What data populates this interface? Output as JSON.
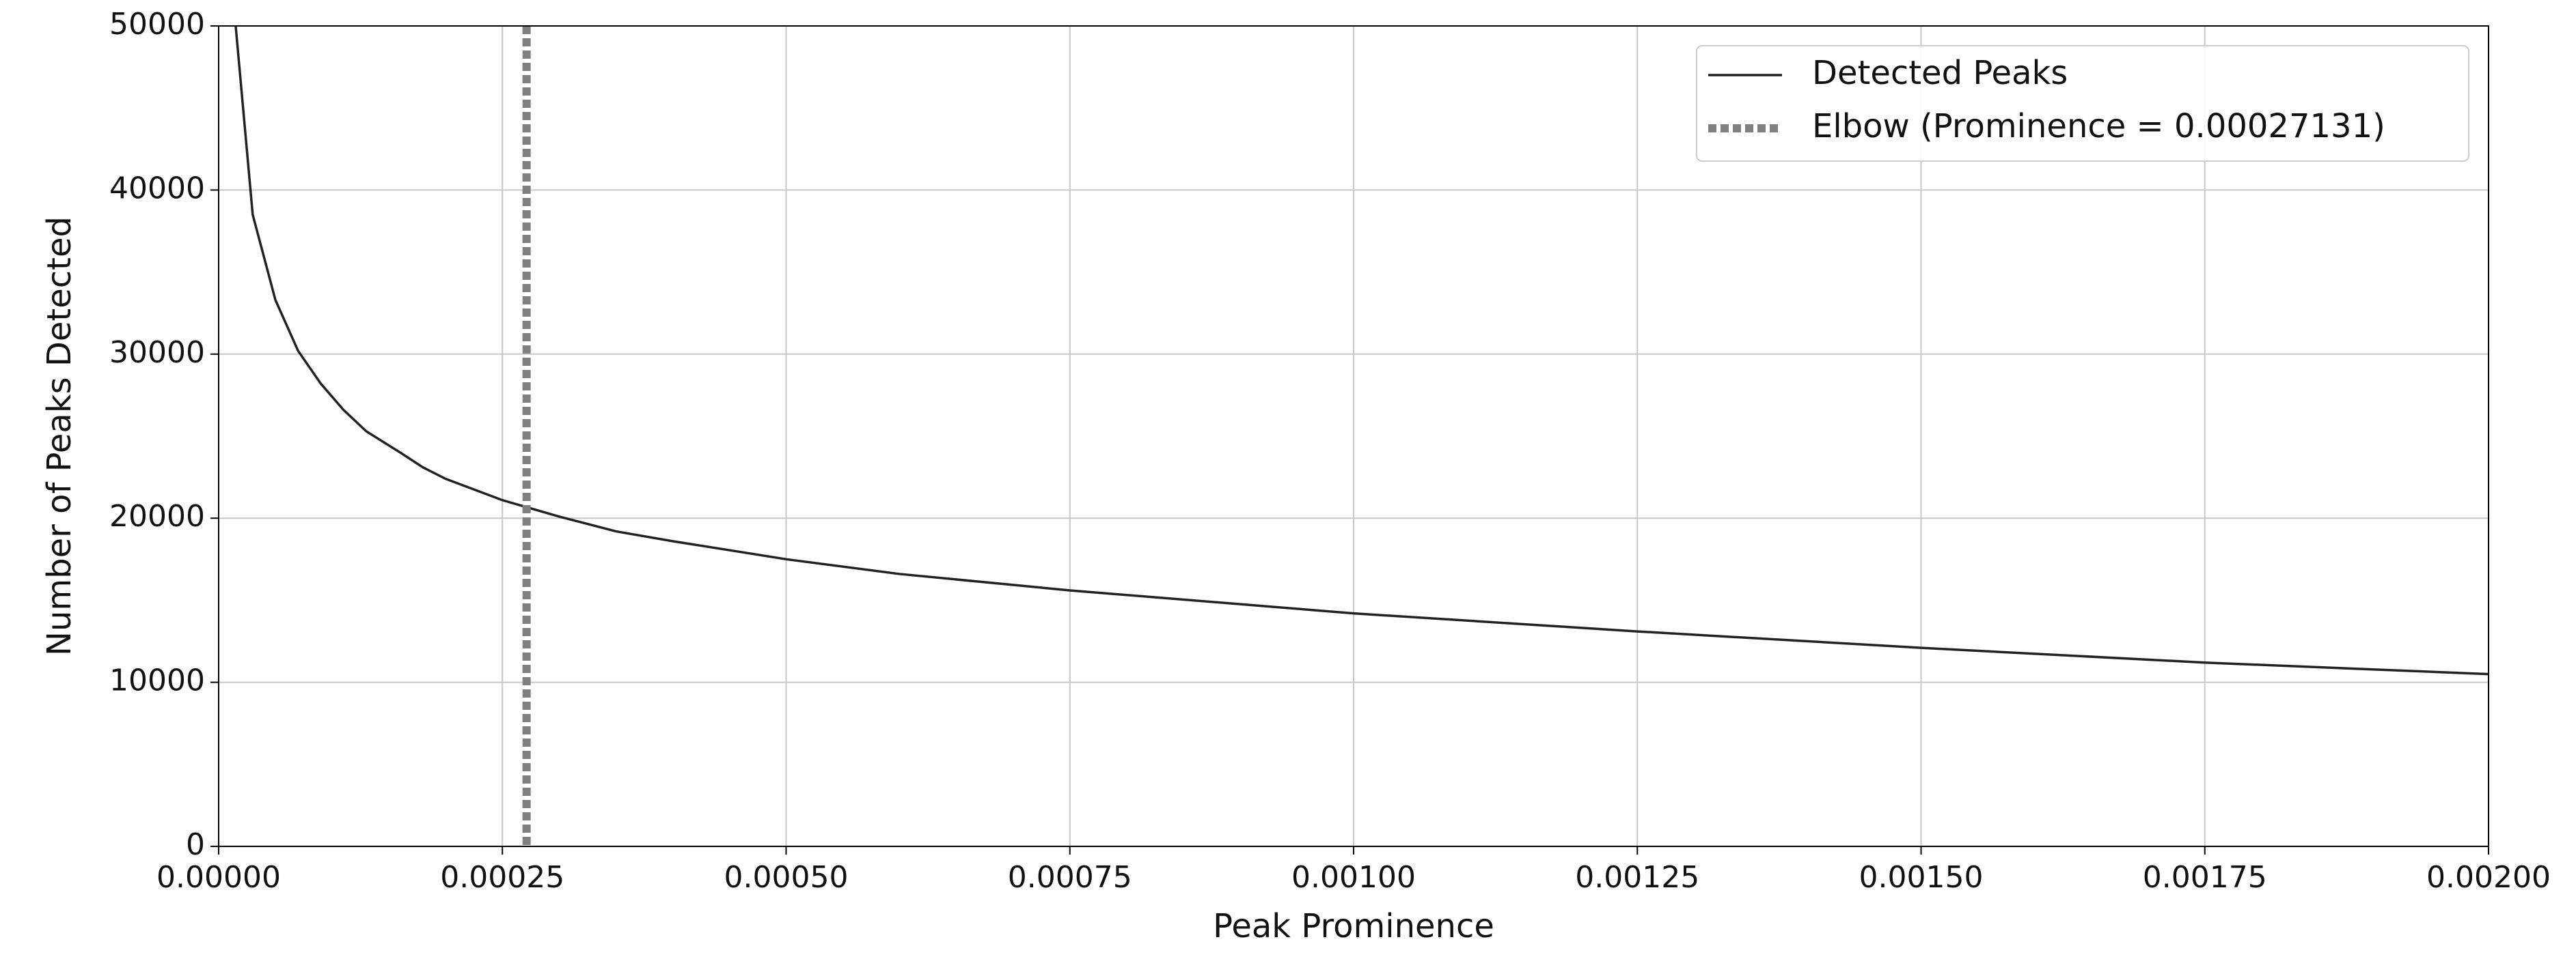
{
  "chart_data": {
    "type": "line",
    "xlabel": "Peak Prominence",
    "ylabel": "Number of Peaks Detected",
    "x": [
      1.5e-05,
      3e-05,
      5e-05,
      7e-05,
      9e-05,
      0.00011,
      0.00013,
      0.00016,
      0.00018,
      0.0002,
      0.00025,
      0.0003,
      0.00035,
      0.0004,
      0.0005,
      0.0006,
      0.00075,
      0.001,
      0.00125,
      0.0015,
      0.00175,
      0.002
    ],
    "series": [
      {
        "name": "Detected Peaks",
        "color": "#222222",
        "values": [
          50000,
          38500,
          33300,
          30200,
          28200,
          26600,
          25300,
          24000,
          23100,
          22400,
          21100,
          20100,
          19200,
          18600,
          17500,
          16600,
          15600,
          14200,
          13100,
          12100,
          11200,
          10500
        ]
      }
    ],
    "vline": {
      "name": "Elbow (Prominence = 0.00027131)",
      "x": 0.00027131,
      "color": "#808080"
    },
    "xlim": [
      0,
      0.002
    ],
    "ylim": [
      0,
      50000
    ],
    "xticks": [
      {
        "value": 0,
        "label": "0.00000"
      },
      {
        "value": 0.00025,
        "label": "0.00025"
      },
      {
        "value": 0.0005,
        "label": "0.00050"
      },
      {
        "value": 0.00075,
        "label": "0.00075"
      },
      {
        "value": 0.001,
        "label": "0.00100"
      },
      {
        "value": 0.00125,
        "label": "0.00125"
      },
      {
        "value": 0.0015,
        "label": "0.00150"
      },
      {
        "value": 0.00175,
        "label": "0.00175"
      },
      {
        "value": 0.002,
        "label": "0.00200"
      }
    ],
    "yticks": [
      0,
      10000,
      20000,
      30000,
      40000,
      50000
    ],
    "grid": true,
    "legend": "upper right"
  }
}
